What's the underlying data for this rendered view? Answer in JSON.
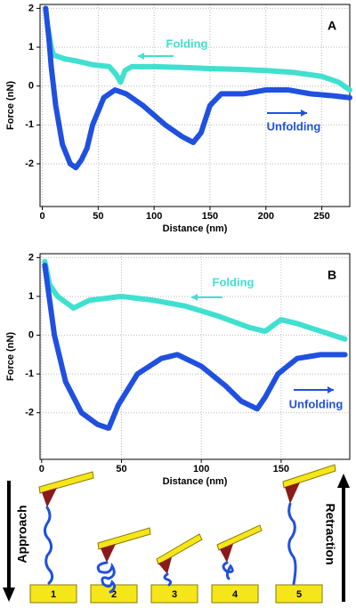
{
  "chart_data": [
    {
      "type": "line",
      "label": "A",
      "xlabel": "Distance (nm)",
      "ylabel": "Force (nN)",
      "xlim": [
        -2,
        275
      ],
      "ylim": [
        -3.1,
        2.1
      ],
      "xticks": [
        0,
        50,
        100,
        150,
        200,
        250
      ],
      "yticks": [
        -2,
        -1,
        0,
        1,
        2
      ],
      "grid": true,
      "series": [
        {
          "name": "Folding",
          "color": "#40e0d0",
          "x": [
            5,
            8,
            10,
            20,
            30,
            45,
            60,
            66,
            70,
            74,
            80,
            100,
            125,
            150,
            175,
            200,
            225,
            250,
            265,
            275
          ],
          "values": [
            1.5,
            1.0,
            0.8,
            0.7,
            0.65,
            0.55,
            0.5,
            0.3,
            0.1,
            0.4,
            0.5,
            0.5,
            0.48,
            0.45,
            0.43,
            0.4,
            0.35,
            0.25,
            0.1,
            -0.1
          ]
        },
        {
          "name": "Unfolding",
          "color": "#2050e0",
          "x": [
            3,
            6,
            8,
            12,
            18,
            25,
            30,
            35,
            40,
            45,
            55,
            65,
            75,
            90,
            110,
            125,
            135,
            142,
            150,
            160,
            180,
            200,
            220,
            240,
            260,
            275
          ],
          "values": [
            2.0,
            1.2,
            0.5,
            -0.5,
            -1.5,
            -2.0,
            -2.1,
            -1.9,
            -1.6,
            -1.0,
            -0.3,
            -0.1,
            -0.2,
            -0.5,
            -1.0,
            -1.3,
            -1.45,
            -1.2,
            -0.5,
            -0.2,
            -0.2,
            -0.1,
            -0.1,
            -0.2,
            -0.25,
            -0.3
          ]
        }
      ]
    },
    {
      "type": "line",
      "label": "B",
      "xlabel": "Distance (nm)",
      "ylabel": "Force (nN)",
      "xlim": [
        -1,
        193
      ],
      "ylim": [
        -3.2,
        2.1
      ],
      "xticks": [
        0,
        50,
        100,
        150
      ],
      "yticks": [
        -2,
        -1,
        0,
        1,
        2
      ],
      "grid": true,
      "series": [
        {
          "name": "Folding",
          "color": "#40e0d0",
          "x": [
            2,
            5,
            10,
            20,
            30,
            50,
            70,
            90,
            110,
            130,
            140,
            150,
            160,
            175,
            190
          ],
          "values": [
            1.9,
            1.3,
            1.0,
            0.7,
            0.9,
            1.0,
            0.9,
            0.75,
            0.5,
            0.2,
            0.1,
            0.4,
            0.3,
            0.1,
            -0.1
          ]
        },
        {
          "name": "Unfolding",
          "color": "#2050e0",
          "x": [
            2,
            8,
            15,
            25,
            35,
            42,
            48,
            60,
            75,
            85,
            100,
            115,
            125,
            135,
            140,
            148,
            160,
            175,
            190
          ],
          "values": [
            1.8,
            0.0,
            -1.2,
            -2.0,
            -2.3,
            -2.4,
            -1.8,
            -1.0,
            -0.6,
            -0.5,
            -0.8,
            -1.3,
            -1.7,
            -1.9,
            -1.6,
            -1.0,
            -0.6,
            -0.5,
            -0.5
          ]
        }
      ]
    }
  ],
  "diagram": {
    "left_label": "Approach",
    "right_label": "Retraction",
    "steps": [
      "1",
      "2",
      "3",
      "4",
      "5"
    ]
  }
}
